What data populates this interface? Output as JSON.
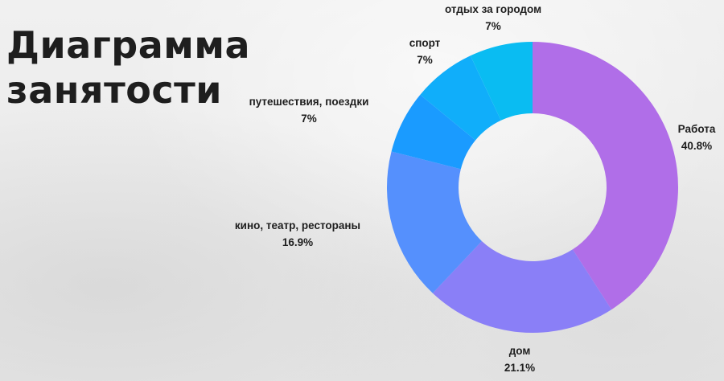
{
  "title": {
    "line1": "Диаграмма",
    "line2": "занятости"
  },
  "chart_data": {
    "type": "pie",
    "donut": true,
    "categories": [
      "Работа",
      "дом",
      "кино, театр, рестораны",
      "путешествия, поездки",
      "спорт",
      "отдых за городом"
    ],
    "values": [
      40.8,
      21.1,
      16.9,
      7,
      7,
      7
    ],
    "value_labels": [
      "40.8%",
      "21.1%",
      "16.9%",
      "7%",
      "7%",
      "7%"
    ],
    "colors": [
      "#b06ee8",
      "#8a7ff7",
      "#5590fd",
      "#1a9bff",
      "#10aefa",
      "#0abcf2"
    ]
  }
}
